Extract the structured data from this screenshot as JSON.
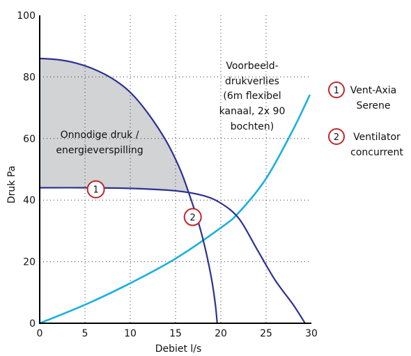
{
  "chart_data": {
    "type": "line",
    "xlabel": "Debiet l/s",
    "ylabel": "Druk Pa",
    "xlim": [
      0,
      30
    ],
    "ylim": [
      0,
      100
    ],
    "x_ticks": [
      "0",
      "5",
      "10",
      "15",
      "20",
      "25",
      "30"
    ],
    "y_ticks": [
      "0",
      "20",
      "40",
      "60",
      "80",
      "100"
    ],
    "grid": true,
    "grid_style": "dotted",
    "colors": {
      "fan_curves": "#2e3192",
      "system_curve": "#1ab0e0",
      "shaded_area": "#d1d3d4",
      "marker_ring": "#c1272d"
    },
    "series": [
      {
        "key": "vent_axia",
        "marker_label": "1",
        "points": [
          [
            0,
            44
          ],
          [
            5,
            44
          ],
          [
            10,
            43.8
          ],
          [
            15,
            43
          ],
          [
            18,
            41.5
          ],
          [
            20,
            39
          ],
          [
            22,
            34
          ],
          [
            24,
            24
          ],
          [
            26,
            14
          ],
          [
            28,
            6
          ],
          [
            29.3,
            0
          ]
        ]
      },
      {
        "key": "concurrent",
        "marker_label": "2",
        "points": [
          [
            0,
            86
          ],
          [
            2,
            85.6
          ],
          [
            4,
            84.5
          ],
          [
            6,
            82.5
          ],
          [
            8,
            79.5
          ],
          [
            10,
            75
          ],
          [
            12,
            68
          ],
          [
            14,
            59
          ],
          [
            15.5,
            50
          ],
          [
            16.5,
            42
          ],
          [
            17.5,
            33
          ],
          [
            18.3,
            24
          ],
          [
            19,
            14
          ],
          [
            19.4,
            6
          ],
          [
            19.6,
            0
          ]
        ]
      },
      {
        "key": "system",
        "points": [
          [
            0,
            0
          ],
          [
            5,
            6
          ],
          [
            10,
            13
          ],
          [
            15,
            21
          ],
          [
            20,
            31
          ],
          [
            22,
            36
          ],
          [
            25,
            47
          ],
          [
            28,
            63
          ],
          [
            29.8,
            74
          ]
        ]
      }
    ],
    "markers": [
      {
        "label": "1",
        "x": 6.2,
        "y": 43.5
      },
      {
        "label": "2",
        "x": 16.9,
        "y": 34.5
      }
    ],
    "annotations": {
      "shaded_area_text": [
        "Onnodige druk /",
        "energieverspilling"
      ],
      "system_curve_text": [
        "Voorbeeld-",
        "drukverlies",
        "(6m flexibel",
        "kanaal, 2x 90",
        "bochten)"
      ]
    },
    "legend": [
      {
        "badge": "1",
        "lines": [
          "Vent-Axia",
          "Serene"
        ]
      },
      {
        "badge": "2",
        "lines": [
          "Ventilator",
          "concurrent"
        ]
      }
    ]
  }
}
